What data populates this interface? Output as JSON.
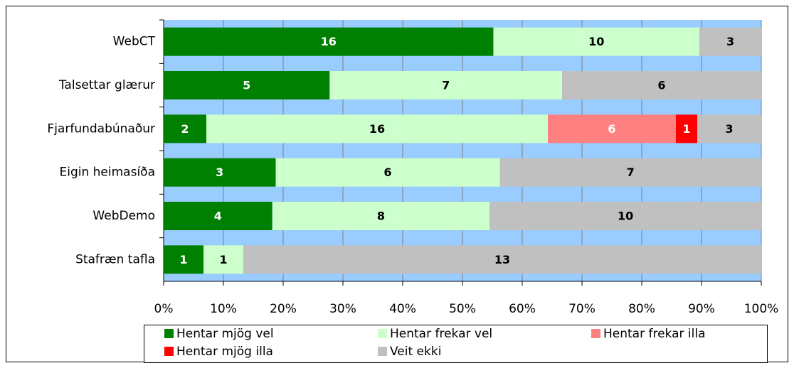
{
  "chart_data": {
    "type": "bar100h",
    "categories": [
      "WebCT",
      "Talsettar glærur",
      "Fjarfundabúnaður",
      "Eigin heimasíða",
      "WebDemo",
      "Stafræn tafla"
    ],
    "series": [
      {
        "name": "Hentar mjög vel",
        "color": "#008000",
        "label_color": "#ffffff",
        "values": [
          16,
          5,
          2,
          3,
          4,
          1
        ]
      },
      {
        "name": "Hentar frekar vel",
        "color": "#ccffcc",
        "label_color": "#000000",
        "values": [
          10,
          7,
          16,
          6,
          8,
          1
        ]
      },
      {
        "name": "Hentar frekar illa",
        "color": "#ff8080",
        "label_color": "#ffffff",
        "values": [
          null,
          null,
          6,
          null,
          null,
          null
        ]
      },
      {
        "name": "Hentar mjög illa",
        "color": "#ff0000",
        "label_color": "#ffffff",
        "values": [
          null,
          null,
          1,
          null,
          null,
          null
        ]
      },
      {
        "name": "Veit ekki",
        "color": "#c0c0c0",
        "label_color": "#000000",
        "values": [
          3,
          6,
          3,
          7,
          10,
          13
        ]
      }
    ],
    "xlim": [
      0,
      100
    ],
    "xticks": [
      {
        "value": 0,
        "label": "0%"
      },
      {
        "value": 10,
        "label": "10%"
      },
      {
        "value": 20,
        "label": "20%"
      },
      {
        "value": 30,
        "label": "30%"
      },
      {
        "value": 40,
        "label": "40%"
      },
      {
        "value": 50,
        "label": "50%"
      },
      {
        "value": 60,
        "label": "60%"
      },
      {
        "value": 70,
        "label": "70%"
      },
      {
        "value": 80,
        "label": "80%"
      },
      {
        "value": 90,
        "label": "90%"
      },
      {
        "value": 100,
        "label": "100%"
      }
    ],
    "grid": true,
    "legend": "bottom"
  }
}
